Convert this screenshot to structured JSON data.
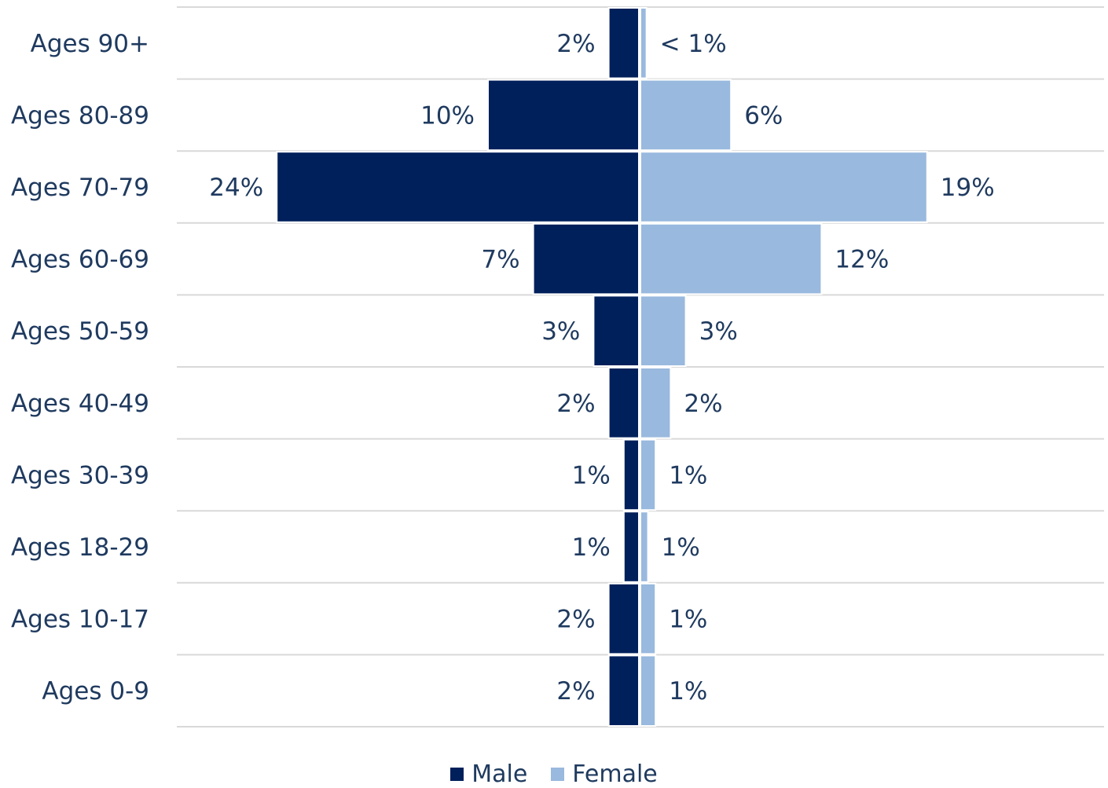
{
  "chart_data": {
    "type": "bar",
    "orientation": "horizontal",
    "layout": "population-pyramid",
    "categories": [
      "Ages 90+",
      "Ages 80-89",
      "Ages 70-79",
      "Ages 60-69",
      "Ages 50-59",
      "Ages 40-49",
      "Ages 30-39",
      "Ages 18-29",
      "Ages 10-17",
      "Ages 0-9"
    ],
    "series": [
      {
        "name": "Male",
        "side": "left",
        "color": "#00205b",
        "values": [
          2,
          10,
          24,
          7,
          3,
          2,
          1,
          1,
          2,
          2
        ],
        "labels": [
          "2%",
          "10%",
          "24%",
          "7%",
          "3%",
          "2%",
          "1%",
          "1%",
          "2%",
          "2%"
        ]
      },
      {
        "name": "Female",
        "side": "right",
        "color": "#99b9de",
        "values": [
          0.4,
          6,
          19,
          12,
          3,
          2,
          1,
          0.5,
          1,
          1
        ],
        "labels": [
          "< 1%",
          "6%",
          "19%",
          "12%",
          "3%",
          "2%",
          "1%",
          "1%",
          "1%",
          "1%"
        ]
      }
    ],
    "xlim": [
      -30,
      30
    ],
    "grid": "horizontal separators",
    "legend_position": "bottom",
    "text_color": "#1f3a5f"
  }
}
